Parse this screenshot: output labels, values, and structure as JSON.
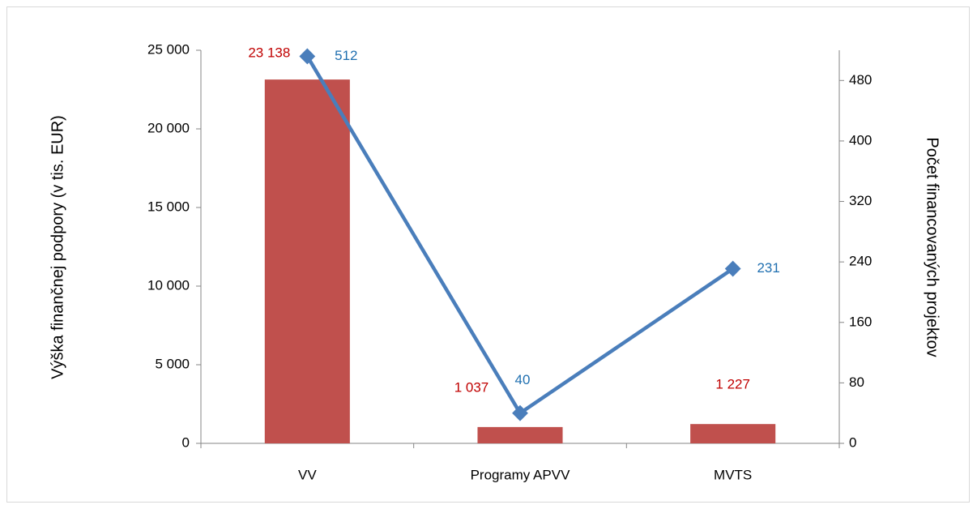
{
  "chart_data": {
    "type": "bar",
    "categories": [
      "VV",
      "Programy APVV",
      "MVTS"
    ],
    "series": [
      {
        "type": "bar",
        "color": "#c0504d",
        "values": [
          23138,
          1037,
          1227
        ],
        "value_labels": [
          "23 138",
          "1 037",
          "1 227"
        ],
        "label_color": "#c00000"
      },
      {
        "type": "line",
        "color": "#4a7ebb",
        "values": [
          512,
          40,
          231
        ],
        "axis": "y2",
        "label_color": "#1f6fb0"
      }
    ],
    "ylabel": "Výška finančnej podpory (v tis. EUR)",
    "y2label": "Počet financovaných projektov",
    "ylim": [
      0,
      25000
    ],
    "yticks": [
      0,
      {
        "value": 5000,
        "label": "5 000"
      },
      {
        "value": 10000,
        "label": "10 000"
      },
      {
        "value": 15000,
        "label": "15 000"
      },
      {
        "value": 20000,
        "label": "20 000"
      },
      {
        "value": 25000,
        "label": "25 000"
      }
    ],
    "y2lim": [
      0,
      520
    ],
    "y2ticks": [
      0,
      80,
      160,
      240,
      320,
      400,
      480
    ]
  }
}
